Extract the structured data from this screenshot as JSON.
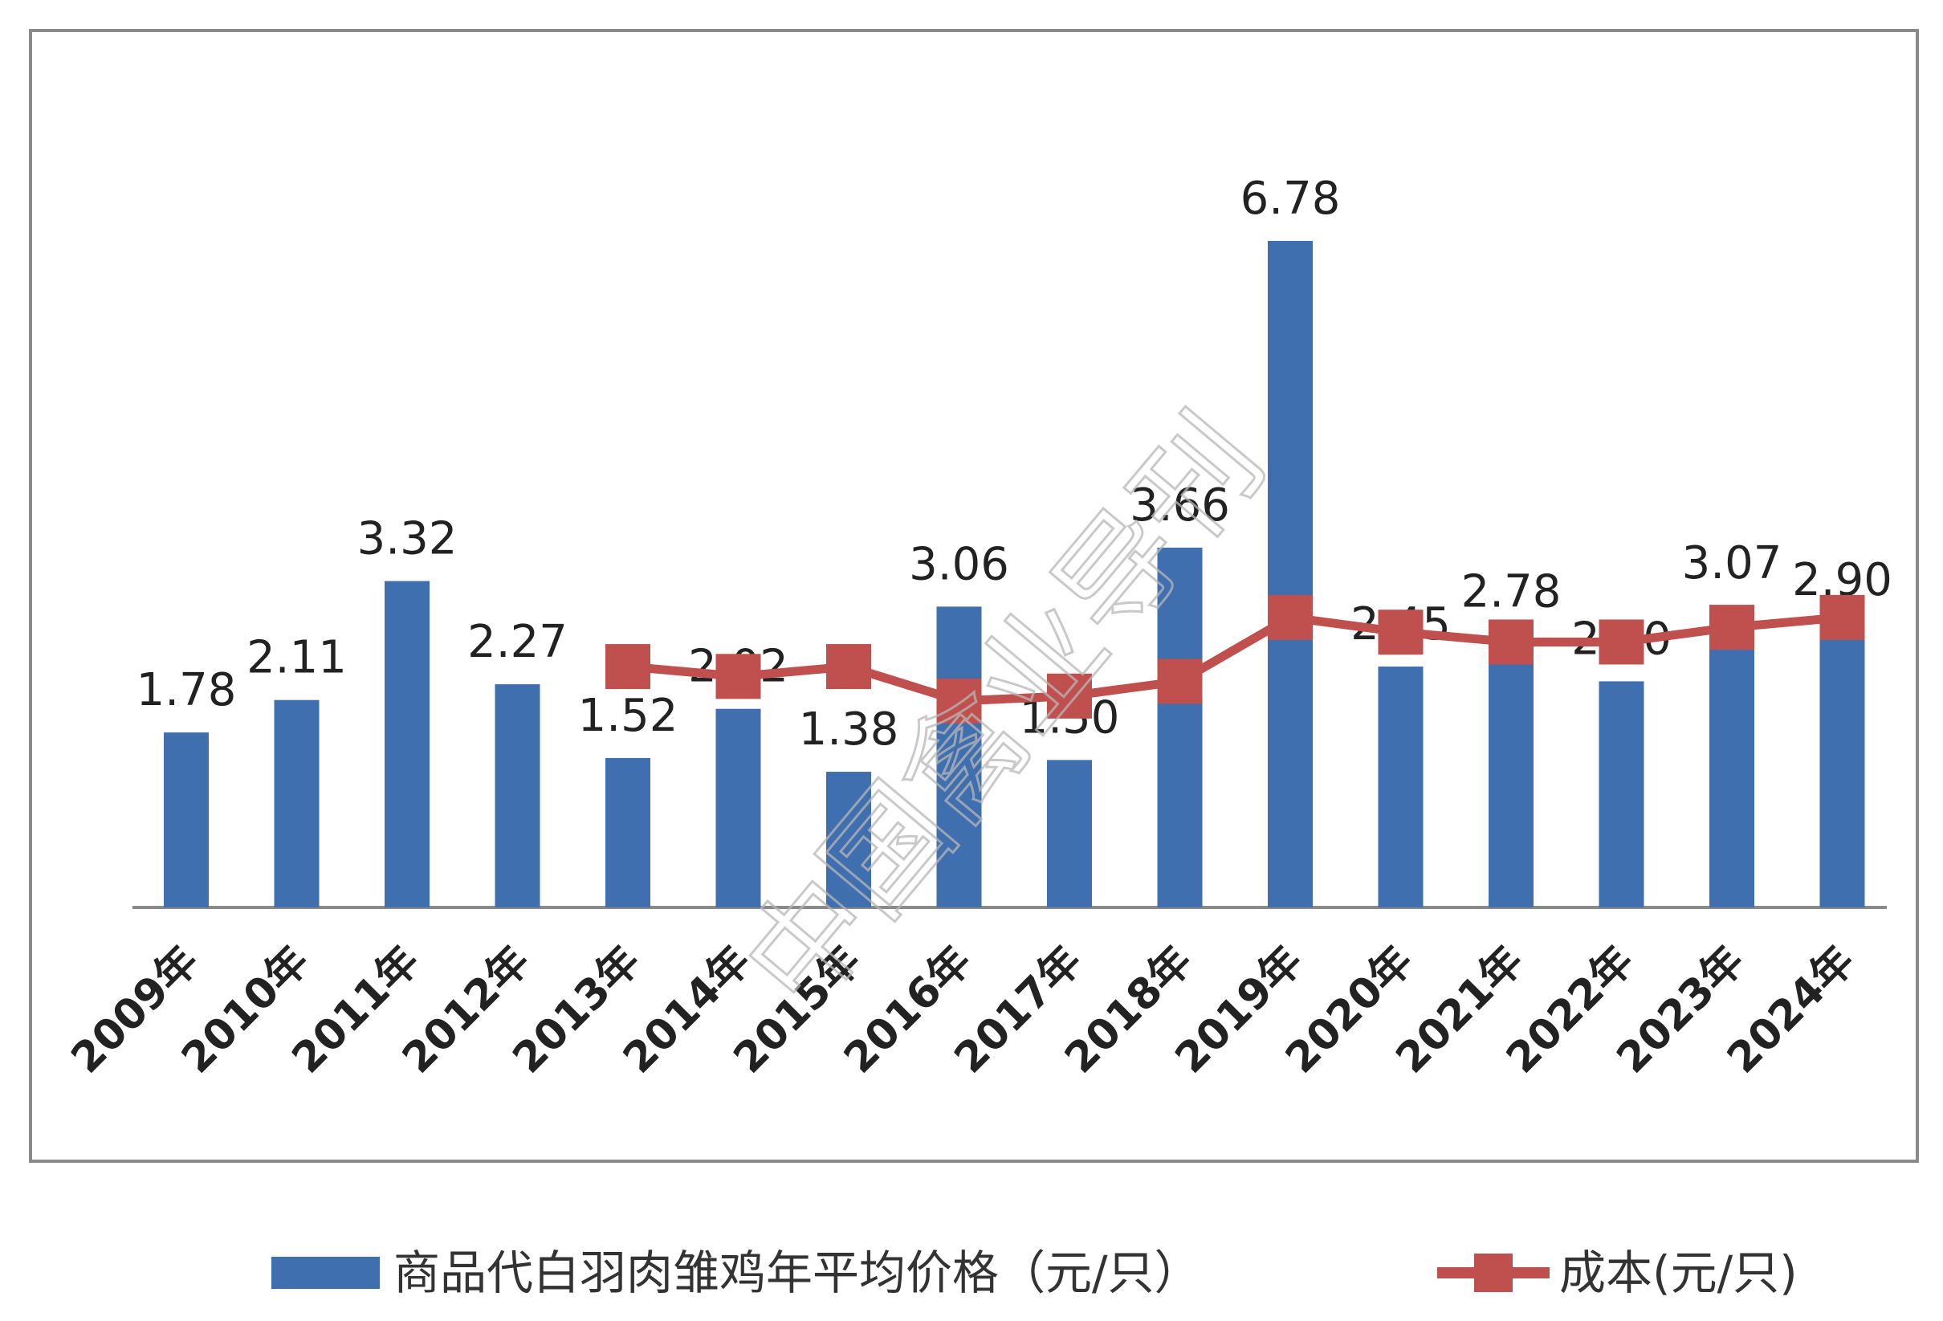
{
  "chart_data": {
    "type": "bar",
    "categories": [
      "2009年",
      "2010年",
      "2011年",
      "2012年",
      "2013年",
      "2014年",
      "2015年",
      "2016年",
      "2017年",
      "2018年",
      "2019年",
      "2020年",
      "2021年",
      "2022年",
      "2023年",
      "2024年"
    ],
    "series": [
      {
        "name": "商品代白羽肉雏鸡年平均价格（元/只）",
        "type": "bar",
        "color": "#3f6fae",
        "values": [
          1.78,
          2.11,
          3.32,
          2.27,
          1.52,
          2.02,
          1.38,
          3.06,
          1.5,
          3.66,
          6.78,
          2.45,
          2.78,
          2.3,
          3.07,
          2.9
        ]
      },
      {
        "name": "成本(元/只)",
        "type": "line",
        "color": "#c0504d",
        "values": [
          null,
          null,
          null,
          null,
          2.45,
          2.35,
          2.45,
          2.1,
          2.15,
          2.3,
          2.95,
          2.8,
          2.7,
          2.7,
          2.85,
          2.95
        ]
      }
    ],
    "ylim": [
      0,
      7.5
    ],
    "grid": false,
    "legend_position": "bottom"
  },
  "watermark": "中国禽业导刊"
}
